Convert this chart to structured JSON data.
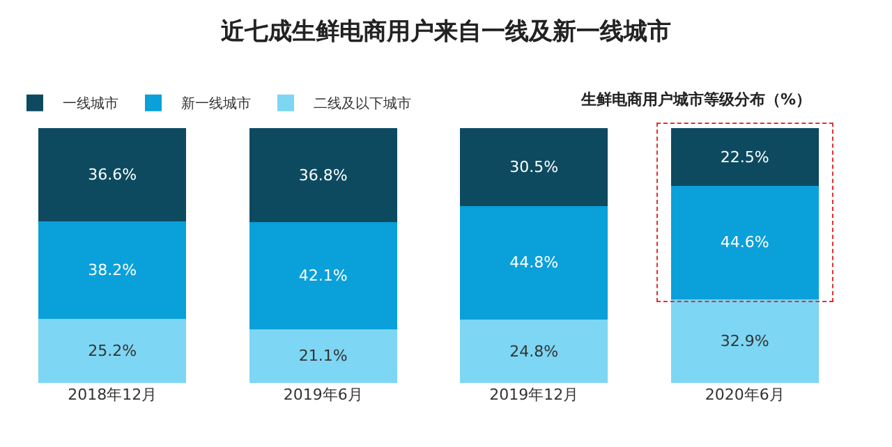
{
  "chart_data": {
    "type": "bar",
    "title": "近七成生鲜电商用户来自一线及新一线城市",
    "subtitle": "生鲜电商用户城市等级分布（%）",
    "categories": [
      "2018年12月",
      "2019年6月",
      "2019年12月",
      "2020年6月"
    ],
    "stacked": true,
    "legend": "top left",
    "series": [
      {
        "name": "二线及以下城市",
        "color": "#7dd6f3",
        "values": [
          25.2,
          21.1,
          24.8,
          32.9
        ],
        "value_labels": [
          "25.2%",
          "21.1%",
          "24.8%",
          "32.9%"
        ]
      },
      {
        "name": "新一线城市",
        "color": "#0aa0d9",
        "values": [
          38.2,
          42.1,
          44.8,
          44.6
        ],
        "value_labels": [
          "38.2%",
          "42.1%",
          "44.8%",
          "44.6%"
        ]
      },
      {
        "name": "一线城市",
        "color": "#0d4a60",
        "values": [
          36.6,
          36.8,
          30.5,
          22.5
        ],
        "value_labels": [
          "36.6%",
          "36.8%",
          "30.5%",
          "22.5%"
        ]
      }
    ]
  }
}
